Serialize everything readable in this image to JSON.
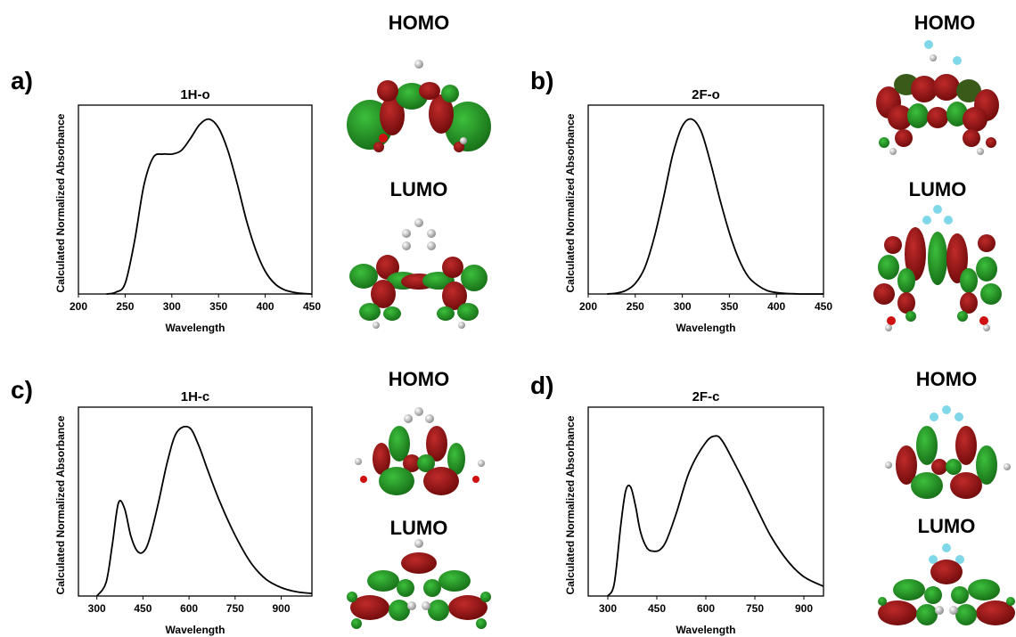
{
  "panels": [
    {
      "id": "a",
      "panel_label": "a)",
      "homo_label": "HOMO",
      "lumo_label": "LUMO",
      "molecule_icon_homo": "homo-orbital-1H-o",
      "molecule_icon_lumo": "lumo-orbital-1H-o"
    },
    {
      "id": "b",
      "panel_label": "b)",
      "homo_label": "HOMO",
      "lumo_label": "LUMO",
      "molecule_icon_homo": "homo-orbital-2F-o",
      "molecule_icon_lumo": "lumo-orbital-2F-o"
    },
    {
      "id": "c",
      "panel_label": "c)",
      "homo_label": "HOMO",
      "lumo_label": "LUMO",
      "molecule_icon_homo": "homo-orbital-1H-c",
      "molecule_icon_lumo": "lumo-orbital-1H-c"
    },
    {
      "id": "d",
      "panel_label": "d)",
      "homo_label": "HOMO",
      "lumo_label": "LUMO",
      "molecule_icon_homo": "homo-orbital-2F-c",
      "molecule_icon_lumo": "lumo-orbital-2F-c"
    }
  ],
  "colors": {
    "orbital_positive": "#8b1010",
    "orbital_negative": "#1e8c1e",
    "atom_carbon": "#9a9a9a",
    "atom_hydrogen": "#e8e8e8",
    "atom_oxygen": "#d01010",
    "atom_fluorine": "#7fd8e8",
    "line": "#000000"
  },
  "chart_data": [
    {
      "type": "line",
      "title": "1H-o",
      "xlabel": "Wavelength",
      "ylabel": "Calculated Normalized Absorbance",
      "xlim": [
        200,
        450
      ],
      "ylim": [
        0,
        1.08
      ],
      "xticks": [
        200,
        250,
        300,
        350,
        400,
        450
      ],
      "grid": false,
      "x": [
        230,
        240,
        250,
        260,
        270,
        280,
        290,
        300,
        310,
        320,
        330,
        340,
        350,
        360,
        370,
        380,
        390,
        400,
        410,
        420,
        430,
        440,
        450
      ],
      "y": [
        0.0,
        0.01,
        0.06,
        0.3,
        0.62,
        0.78,
        0.8,
        0.8,
        0.82,
        0.89,
        0.97,
        1.0,
        0.95,
        0.82,
        0.63,
        0.42,
        0.25,
        0.13,
        0.06,
        0.025,
        0.01,
        0.003,
        0.0
      ]
    },
    {
      "type": "line",
      "title": "2F-o",
      "xlabel": "Wavelength",
      "ylabel": "Calculated Normalized Absorbance",
      "xlim": [
        200,
        450
      ],
      "ylim": [
        0,
        1.08
      ],
      "xticks": [
        200,
        250,
        300,
        350,
        400,
        450
      ],
      "grid": false,
      "x": [
        220,
        230,
        240,
        250,
        260,
        270,
        280,
        290,
        300,
        310,
        320,
        330,
        340,
        350,
        360,
        370,
        380,
        390,
        400,
        410,
        420,
        430,
        450
      ],
      "y": [
        0.0,
        0.005,
        0.02,
        0.06,
        0.15,
        0.32,
        0.55,
        0.8,
        0.96,
        1.0,
        0.93,
        0.75,
        0.54,
        0.35,
        0.2,
        0.1,
        0.05,
        0.02,
        0.008,
        0.003,
        0.001,
        0.0,
        0.0
      ]
    },
    {
      "type": "line",
      "title": "1H-c",
      "xlabel": "Wavelength",
      "ylabel": "Calculated Normalized Absorbance",
      "xlim": [
        240,
        1000
      ],
      "ylim": [
        0,
        1.12
      ],
      "xticks": [
        300,
        450,
        600,
        750,
        900
      ],
      "grid": false,
      "x": [
        300,
        330,
        350,
        370,
        390,
        410,
        430,
        450,
        470,
        500,
        530,
        560,
        600,
        630,
        660,
        700,
        750,
        800,
        850,
        900,
        950,
        1000
      ],
      "y": [
        0.0,
        0.08,
        0.3,
        0.55,
        0.52,
        0.36,
        0.27,
        0.26,
        0.33,
        0.55,
        0.8,
        0.97,
        1.0,
        0.9,
        0.75,
        0.56,
        0.36,
        0.2,
        0.1,
        0.05,
        0.025,
        0.015
      ]
    },
    {
      "type": "line",
      "title": "2F-c",
      "xlabel": "Wavelength",
      "ylabel": "Calculated Normalized Absorbance",
      "xlim": [
        240,
        960
      ],
      "ylim": [
        0,
        1.18
      ],
      "xticks": [
        300,
        450,
        600,
        750,
        900
      ],
      "grid": false,
      "x": [
        300,
        320,
        340,
        355,
        370,
        385,
        400,
        420,
        440,
        460,
        480,
        510,
        550,
        600,
        630,
        650,
        680,
        720,
        760,
        800,
        850,
        900,
        960
      ],
      "y": [
        0.0,
        0.08,
        0.45,
        0.66,
        0.68,
        0.56,
        0.4,
        0.3,
        0.28,
        0.29,
        0.35,
        0.52,
        0.78,
        0.96,
        1.0,
        0.97,
        0.86,
        0.7,
        0.53,
        0.37,
        0.22,
        0.12,
        0.06
      ]
    }
  ]
}
